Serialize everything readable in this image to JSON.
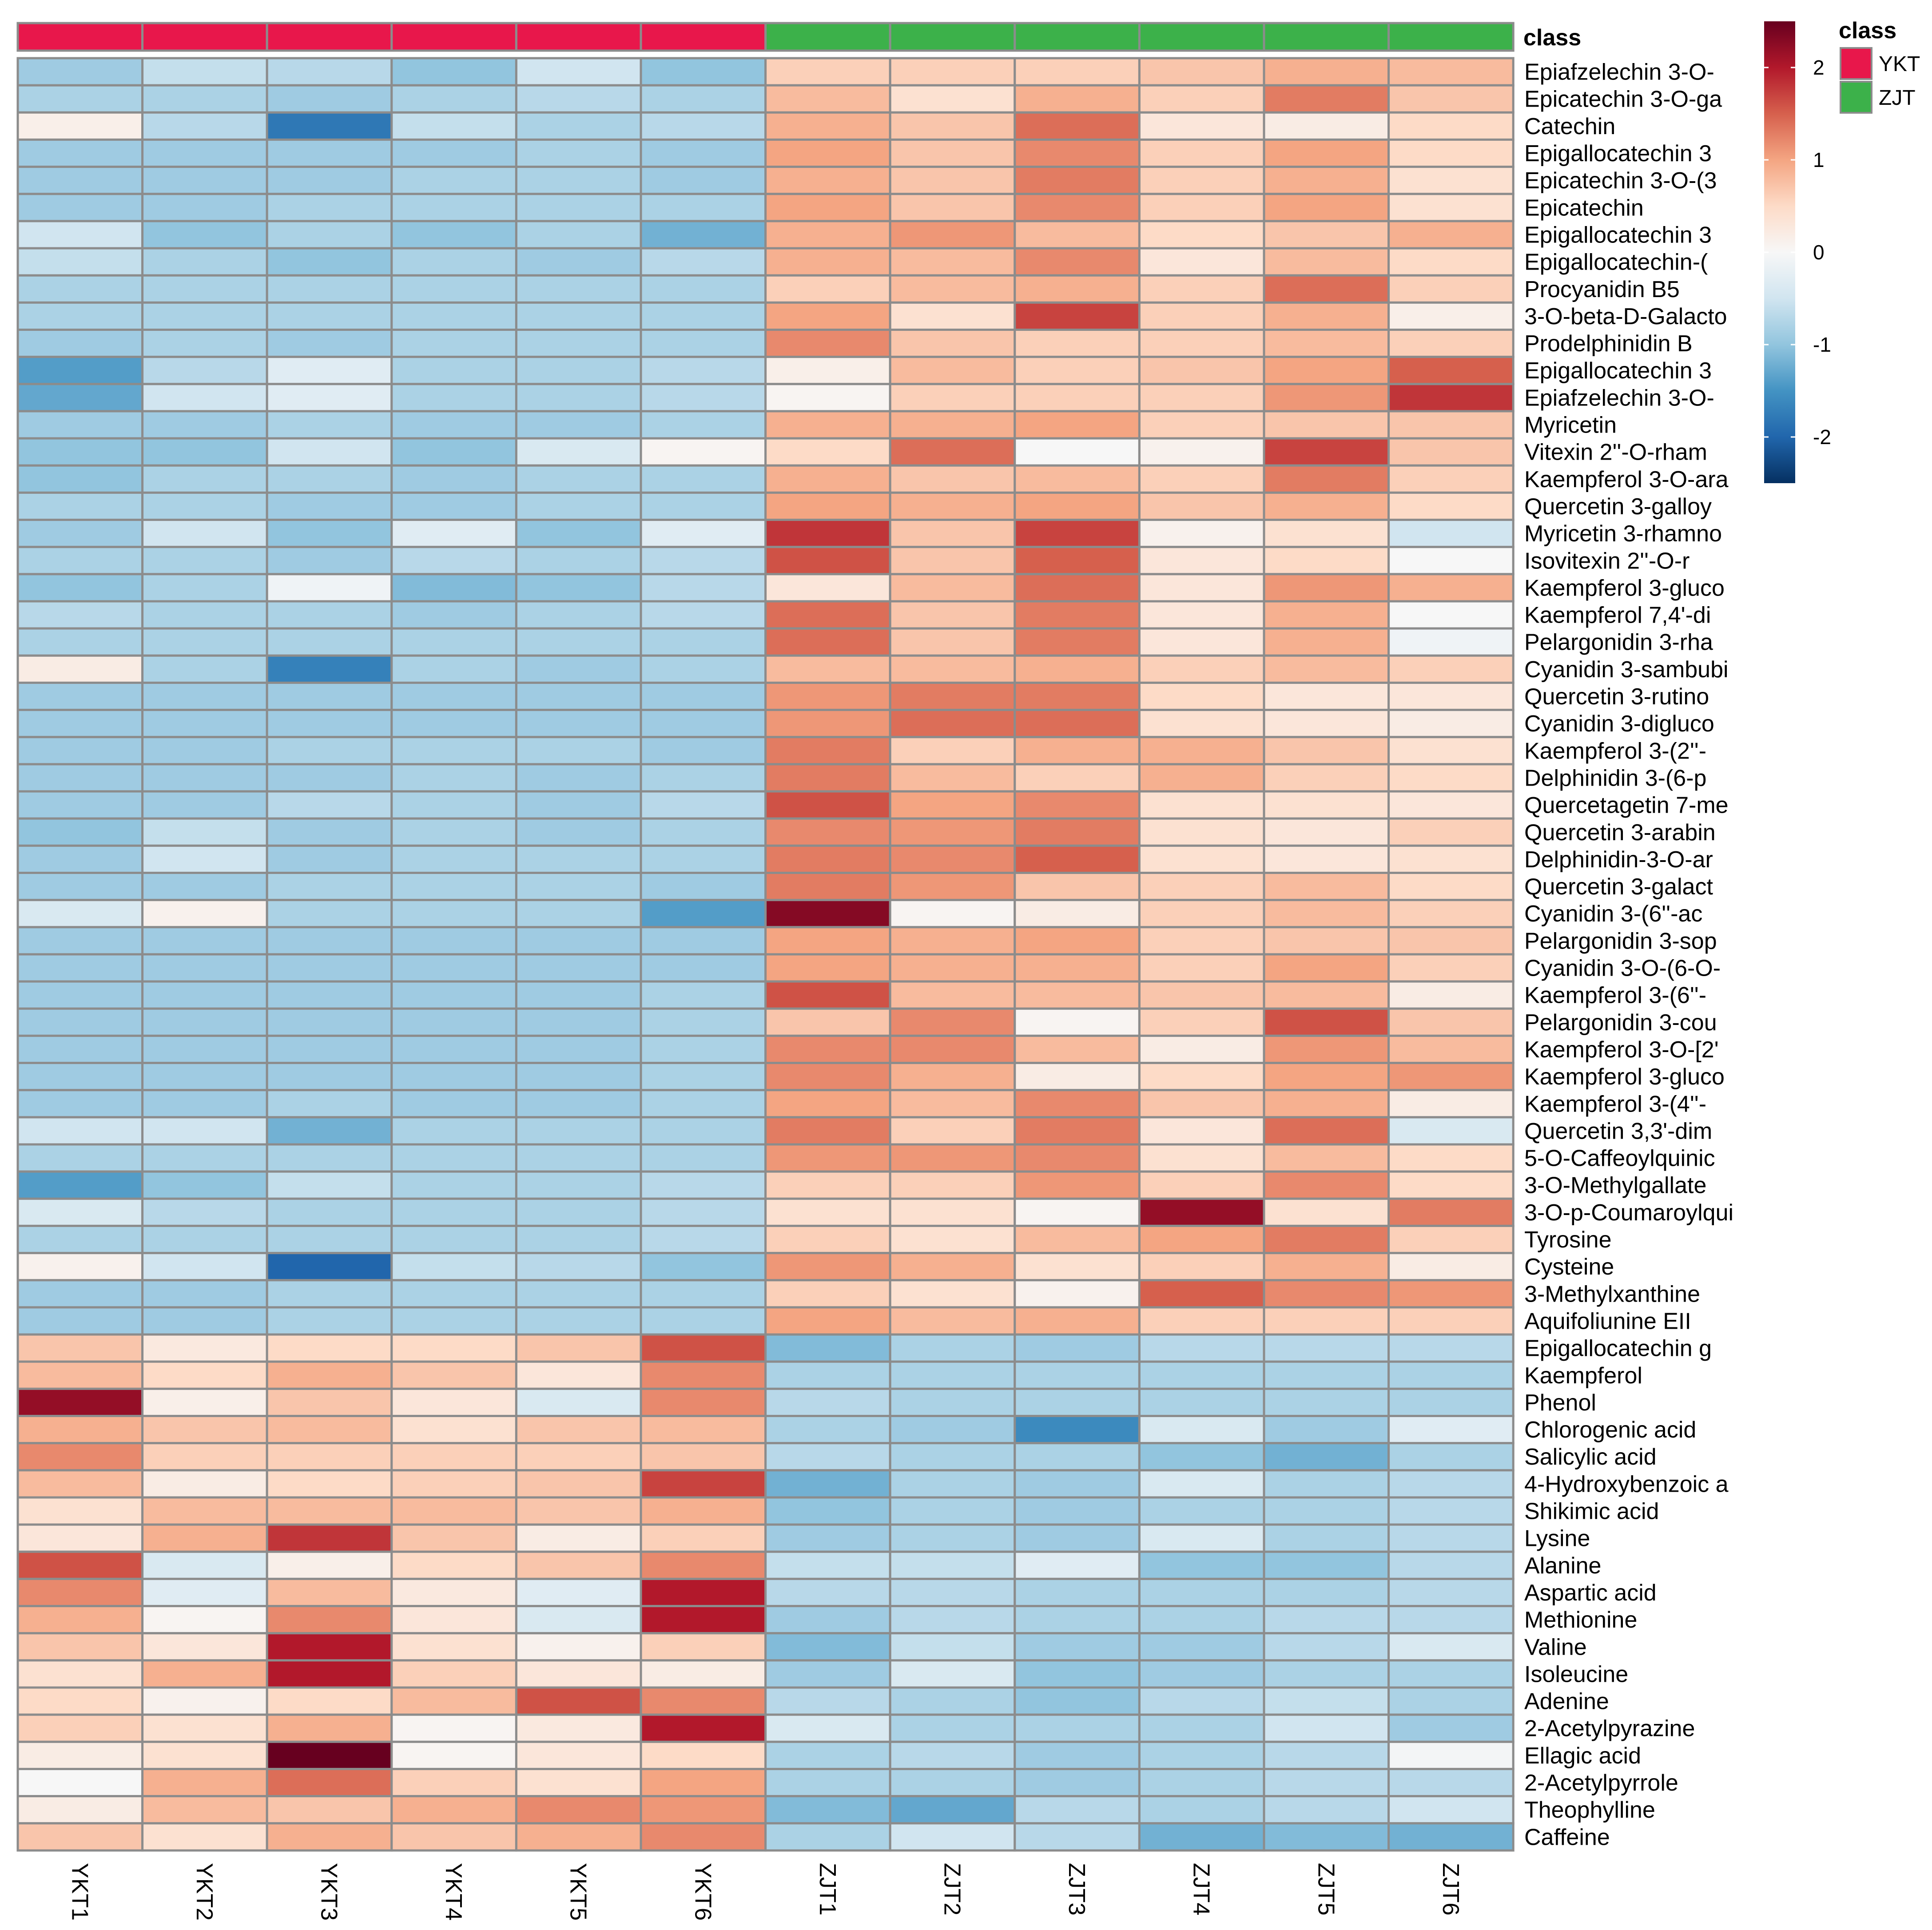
{
  "chart_data": {
    "type": "heatmap",
    "columns": [
      "YKT1",
      "YKT2",
      "YKT3",
      "YKT4",
      "YKT5",
      "YKT6",
      "ZJT1",
      "ZJT2",
      "ZJT3",
      "ZJT4",
      "ZJT5",
      "ZJT6"
    ],
    "column_class": [
      "YKT",
      "YKT",
      "YKT",
      "YKT",
      "YKT",
      "YKT",
      "ZJT",
      "ZJT",
      "ZJT",
      "ZJT",
      "ZJT",
      "ZJT"
    ],
    "annotation_title": "class",
    "class_colors": {
      "YKT": "#e8174b",
      "ZJT": "#3cb14a"
    },
    "legend": {
      "title": "class",
      "items": [
        "YKT",
        "ZJT"
      ]
    },
    "color_scale": {
      "ticks": [
        2,
        1,
        0,
        -1,
        -2
      ],
      "range": [
        -2.5,
        2.5
      ],
      "colors": [
        "#053061",
        "#2166ac",
        "#4393c3",
        "#92c5de",
        "#d1e5f0",
        "#f7f7f7",
        "#fddbc7",
        "#f4a582",
        "#d6604d",
        "#b2182b",
        "#67001f"
      ]
    },
    "rows": [
      "Epiafzelechin 3-O-",
      "Epicatechin 3-O-ga",
      "Catechin",
      "Epigallocatechin 3",
      "Epicatechin 3-O-(3",
      "Epicatechin",
      "Epigallocatechin 3",
      "Epigallocatechin-(",
      "Procyanidin B5",
      "3-O-beta-D-Galacto",
      "Prodelphinidin B",
      "Epigallocatechin 3",
      "Epiafzelechin 3-O-",
      "Myricetin",
      "Vitexin 2''-O-rham",
      "Kaempferol 3-O-ara",
      "Quercetin 3-galloy",
      "Myricetin 3-rhamno",
      "Isovitexin 2''-O-r",
      "Kaempferol 3-gluco",
      "Kaempferol 7,4'-di",
      "Pelargonidin 3-rha",
      "Cyanidin 3-sambubi",
      "Quercetin 3-rutino",
      "Cyanidin 3-digluco",
      "Kaempferol 3-(2''-",
      "Delphinidin 3-(6-p",
      "Quercetagetin 7-me",
      "Quercetin 3-arabin",
      "Delphinidin-3-O-ar",
      "Quercetin 3-galact",
      "Cyanidin 3-(6''-ac",
      "Pelargonidin 3-sop",
      "Cyanidin 3-O-(6-O-",
      "Kaempferol 3-(6''-",
      "Pelargonidin 3-cou",
      "Kaempferol 3-O-[2'",
      "Kaempferol 3-gluco",
      "Kaempferol 3-(4''-",
      "Quercetin 3,3'-dim",
      "5-O-Caffeoylquinic",
      "3-O-Methylgallate",
      "3-O-p-Coumaroylqui",
      "Tyrosine",
      "Cysteine",
      "3-Methylxanthine",
      "Aquifoliunine EII",
      "Epigallocatechin g",
      "Kaempferol",
      "Phenol",
      "Chlorogenic acid",
      "Salicylic acid",
      "4-Hydroxybenzoic a",
      "Shikimic acid",
      "Lysine",
      "Alanine",
      "Aspartic acid",
      "Methionine",
      "Valine",
      "Isoleucine",
      "Adenine",
      "2-Acetylpyrazine",
      "Ellagic acid",
      "2-Acetylpyrrole",
      "Theophylline",
      "Caffeine"
    ],
    "values": [
      [
        -0.9,
        -0.6,
        -0.7,
        -1.0,
        -0.5,
        -1.0,
        0.6,
        0.6,
        0.6,
        0.7,
        0.9,
        0.8
      ],
      [
        -0.8,
        -0.8,
        -0.9,
        -0.8,
        -0.7,
        -0.8,
        0.8,
        0.4,
        0.9,
        0.6,
        1.3,
        0.7
      ],
      [
        0.15,
        -0.7,
        -1.8,
        -0.6,
        -0.8,
        -0.7,
        0.9,
        0.7,
        1.4,
        0.3,
        0.2,
        0.5
      ],
      [
        -0.9,
        -0.9,
        -0.9,
        -0.9,
        -0.8,
        -0.9,
        1.0,
        0.7,
        1.2,
        0.6,
        1.0,
        0.5
      ],
      [
        -0.9,
        -0.9,
        -0.9,
        -0.8,
        -0.8,
        -0.9,
        0.9,
        0.7,
        1.3,
        0.6,
        0.9,
        0.4
      ],
      [
        -0.9,
        -0.9,
        -0.8,
        -0.8,
        -0.8,
        -0.8,
        1.0,
        0.7,
        1.2,
        0.6,
        1.0,
        0.4
      ],
      [
        -0.5,
        -1.0,
        -0.8,
        -1.0,
        -0.8,
        -1.2,
        0.9,
        1.1,
        0.8,
        0.5,
        0.7,
        0.9
      ],
      [
        -0.6,
        -0.8,
        -1.0,
        -0.8,
        -0.9,
        -0.7,
        0.9,
        0.8,
        1.2,
        0.3,
        0.8,
        0.5
      ],
      [
        -0.8,
        -0.8,
        -0.8,
        -0.8,
        -0.8,
        -0.8,
        0.6,
        0.8,
        0.9,
        0.6,
        1.4,
        0.6
      ],
      [
        -0.8,
        -0.8,
        -0.8,
        -0.8,
        -0.8,
        -0.8,
        1.0,
        0.4,
        1.7,
        0.6,
        0.9,
        0.15
      ],
      [
        -0.9,
        -0.8,
        -0.9,
        -0.8,
        -0.8,
        -0.8,
        1.2,
        0.7,
        0.6,
        0.6,
        0.8,
        0.6
      ],
      [
        -1.4,
        -0.7,
        -0.3,
        -0.8,
        -0.8,
        -0.7,
        0.15,
        0.8,
        0.6,
        0.7,
        1.0,
        1.5
      ],
      [
        -1.3,
        -0.5,
        -0.3,
        -0.8,
        -0.8,
        -0.7,
        0.05,
        0.6,
        0.6,
        0.6,
        1.1,
        1.8
      ],
      [
        -0.9,
        -0.9,
        -0.8,
        -0.9,
        -0.9,
        -0.8,
        0.9,
        0.9,
        1.0,
        0.6,
        0.7,
        0.7
      ],
      [
        -1.0,
        -1.0,
        -0.5,
        -1.0,
        -0.4,
        0.05,
        0.5,
        1.4,
        0.0,
        0.1,
        1.7,
        0.7
      ],
      [
        -1.0,
        -0.8,
        -0.8,
        -0.9,
        -0.8,
        -0.8,
        0.9,
        0.7,
        0.8,
        0.6,
        1.3,
        0.6
      ],
      [
        -0.8,
        -0.8,
        -0.9,
        -0.9,
        -0.8,
        -0.8,
        1.0,
        0.9,
        1.0,
        0.7,
        0.9,
        0.5
      ],
      [
        -0.9,
        -0.5,
        -1.0,
        -0.3,
        -1.0,
        -0.3,
        1.8,
        0.7,
        1.7,
        0.1,
        0.4,
        -0.5
      ],
      [
        -0.8,
        -0.8,
        -0.9,
        -0.7,
        -0.8,
        -0.7,
        1.6,
        0.7,
        1.5,
        0.3,
        0.5,
        0.0
      ],
      [
        -1.0,
        -0.8,
        -0.1,
        -1.1,
        -1.0,
        -0.7,
        0.3,
        0.8,
        1.4,
        0.3,
        1.1,
        0.9
      ],
      [
        -0.7,
        -0.8,
        -0.8,
        -0.9,
        -0.8,
        -0.7,
        1.4,
        0.7,
        1.3,
        0.3,
        0.9,
        0.0
      ],
      [
        -0.8,
        -0.8,
        -0.8,
        -0.8,
        -0.8,
        -0.8,
        1.4,
        0.7,
        1.3,
        0.3,
        0.9,
        -0.1
      ],
      [
        0.2,
        -0.8,
        -1.7,
        -0.8,
        -0.9,
        -0.8,
        0.8,
        0.8,
        0.9,
        0.6,
        0.8,
        0.6
      ],
      [
        -0.9,
        -0.9,
        -0.9,
        -0.9,
        -0.9,
        -0.9,
        1.1,
        1.3,
        1.3,
        0.5,
        0.3,
        0.3
      ],
      [
        -0.9,
        -0.9,
        -0.9,
        -0.9,
        -0.9,
        -0.9,
        1.1,
        1.4,
        1.4,
        0.4,
        0.3,
        0.2
      ],
      [
        -0.9,
        -0.9,
        -0.8,
        -0.8,
        -0.8,
        -0.9,
        1.3,
        0.6,
        0.9,
        0.9,
        0.7,
        0.4
      ],
      [
        -0.9,
        -0.9,
        -0.9,
        -0.8,
        -0.9,
        -0.8,
        1.3,
        0.8,
        0.6,
        0.9,
        0.6,
        0.5
      ],
      [
        -0.9,
        -0.9,
        -0.7,
        -0.8,
        -0.9,
        -0.7,
        1.6,
        1.0,
        1.2,
        0.4,
        0.4,
        0.3
      ],
      [
        -1.0,
        -0.6,
        -0.9,
        -0.8,
        -0.9,
        -0.8,
        1.2,
        1.1,
        1.3,
        0.4,
        0.3,
        0.6
      ],
      [
        -0.9,
        -0.5,
        -0.9,
        -0.8,
        -0.8,
        -0.8,
        1.3,
        1.2,
        1.5,
        0.4,
        0.3,
        0.4
      ],
      [
        -0.9,
        -0.9,
        -0.8,
        -0.8,
        -0.8,
        -0.9,
        1.3,
        1.1,
        0.7,
        0.6,
        0.8,
        0.5
      ],
      [
        -0.4,
        0.1,
        -0.8,
        -0.8,
        -0.8,
        -1.4,
        2.3,
        0.05,
        0.2,
        0.6,
        0.8,
        0.6
      ],
      [
        -0.9,
        -0.9,
        -0.9,
        -0.9,
        -0.9,
        -0.9,
        1.0,
        0.9,
        1.0,
        0.6,
        0.7,
        0.7
      ],
      [
        -0.9,
        -0.9,
        -0.9,
        -0.9,
        -0.9,
        -0.9,
        1.0,
        0.9,
        0.9,
        0.6,
        1.0,
        0.6
      ],
      [
        -0.9,
        -0.9,
        -0.9,
        -0.9,
        -0.9,
        -0.8,
        1.6,
        0.8,
        0.8,
        0.7,
        0.8,
        0.2
      ],
      [
        -0.9,
        -0.9,
        -0.9,
        -0.9,
        -0.9,
        -0.8,
        0.7,
        1.2,
        0.05,
        0.6,
        1.6,
        0.7
      ],
      [
        -0.9,
        -0.9,
        -0.9,
        -0.9,
        -0.9,
        -0.8,
        1.2,
        1.2,
        0.8,
        0.2,
        1.1,
        0.8
      ],
      [
        -0.9,
        -0.9,
        -0.9,
        -0.9,
        -0.9,
        -0.8,
        1.2,
        0.9,
        0.2,
        0.5,
        1.0,
        1.1
      ],
      [
        -0.9,
        -0.9,
        -0.8,
        -0.9,
        -0.9,
        -0.8,
        1.0,
        0.8,
        1.2,
        0.7,
        0.9,
        0.2
      ],
      [
        -0.5,
        -0.5,
        -1.2,
        -0.8,
        -0.8,
        -0.8,
        1.3,
        0.6,
        1.3,
        0.3,
        1.4,
        -0.4
      ],
      [
        -0.8,
        -0.8,
        -0.8,
        -0.8,
        -0.8,
        -0.8,
        1.1,
        1.1,
        1.2,
        0.4,
        0.8,
        0.5
      ],
      [
        -1.4,
        -1.0,
        -0.6,
        -0.8,
        -0.8,
        -0.7,
        0.6,
        0.6,
        1.1,
        0.6,
        1.2,
        0.5
      ],
      [
        -0.4,
        -0.7,
        -0.8,
        -0.8,
        -0.8,
        -0.7,
        0.4,
        0.4,
        0.05,
        2.2,
        0.4,
        1.3
      ],
      [
        -0.8,
        -0.8,
        -0.8,
        -0.8,
        -0.8,
        -0.7,
        0.6,
        0.4,
        0.8,
        1.0,
        1.3,
        0.6
      ],
      [
        0.1,
        -0.5,
        -2.0,
        -0.6,
        -0.7,
        -1.0,
        1.1,
        0.9,
        0.4,
        0.6,
        0.9,
        0.2
      ],
      [
        -0.9,
        -0.9,
        -0.8,
        -0.8,
        -0.8,
        -0.8,
        0.6,
        0.4,
        0.1,
        1.5,
        1.2,
        1.1
      ],
      [
        -0.9,
        -0.9,
        -0.8,
        -0.8,
        -0.8,
        -0.8,
        1.0,
        0.8,
        0.9,
        0.6,
        0.6,
        0.6
      ],
      [
        0.7,
        0.25,
        0.5,
        0.5,
        0.7,
        1.6,
        -1.1,
        -0.8,
        -0.9,
        -0.7,
        -0.7,
        -0.7
      ],
      [
        0.8,
        0.5,
        0.9,
        0.7,
        0.3,
        1.2,
        -0.8,
        -0.8,
        -0.8,
        -0.8,
        -0.8,
        -0.8
      ],
      [
        2.2,
        0.15,
        0.7,
        0.3,
        -0.4,
        1.2,
        -0.7,
        -0.8,
        -0.8,
        -0.8,
        -0.8,
        -0.8
      ],
      [
        0.9,
        0.7,
        0.8,
        0.4,
        0.7,
        0.8,
        -0.8,
        -0.9,
        -1.6,
        -0.4,
        -0.9,
        -0.3
      ],
      [
        1.2,
        0.6,
        0.6,
        0.6,
        0.6,
        0.7,
        -0.7,
        -0.8,
        -0.8,
        -1.0,
        -1.2,
        -0.8
      ],
      [
        0.8,
        0.2,
        0.5,
        0.6,
        0.7,
        1.7,
        -1.2,
        -0.8,
        -0.9,
        -0.4,
        -0.8,
        -0.7
      ],
      [
        0.4,
        0.8,
        0.8,
        0.8,
        0.7,
        0.9,
        -1.0,
        -0.8,
        -0.9,
        -0.8,
        -0.8,
        -0.7
      ],
      [
        0.3,
        0.9,
        1.8,
        0.7,
        0.2,
        0.6,
        -0.9,
        -0.8,
        -0.9,
        -0.4,
        -0.8,
        -0.7
      ],
      [
        1.6,
        -0.4,
        0.15,
        0.5,
        0.7,
        1.2,
        -0.6,
        -0.6,
        -0.3,
        -1.0,
        -1.0,
        -0.7
      ],
      [
        1.2,
        -0.3,
        0.8,
        0.25,
        -0.3,
        2.0,
        -0.7,
        -0.7,
        -0.8,
        -0.8,
        -0.8,
        -0.7
      ],
      [
        0.9,
        0.05,
        1.2,
        0.3,
        -0.4,
        2.0,
        -0.9,
        -0.7,
        -0.8,
        -0.8,
        -0.7,
        -0.7
      ],
      [
        0.7,
        0.3,
        2.0,
        0.4,
        0.1,
        0.6,
        -1.1,
        -0.6,
        -0.9,
        -0.9,
        -0.7,
        -0.4
      ],
      [
        0.4,
        0.9,
        2.0,
        0.6,
        0.3,
        0.2,
        -0.9,
        -0.4,
        -1.0,
        -0.9,
        -0.8,
        -0.8
      ],
      [
        0.5,
        0.1,
        0.5,
        0.8,
        1.6,
        1.2,
        -0.7,
        -0.8,
        -1.0,
        -0.7,
        -0.6,
        -0.8
      ],
      [
        0.6,
        0.4,
        0.9,
        0.05,
        0.25,
        2.0,
        -0.4,
        -0.8,
        -0.8,
        -0.8,
        -0.5,
        -0.9
      ],
      [
        0.2,
        0.4,
        2.5,
        0.05,
        0.3,
        0.5,
        -0.8,
        -0.7,
        -0.9,
        -0.8,
        -0.7,
        -0.05
      ],
      [
        0.0,
        0.9,
        1.4,
        0.6,
        0.4,
        1.0,
        -0.8,
        -0.8,
        -0.9,
        -0.8,
        -0.7,
        -0.7
      ],
      [
        0.2,
        0.8,
        0.7,
        0.9,
        1.2,
        1.1,
        -1.1,
        -1.3,
        -0.7,
        -0.8,
        -0.7,
        -0.5
      ],
      [
        0.7,
        0.4,
        0.9,
        0.7,
        0.9,
        1.2,
        -0.8,
        -0.5,
        -0.7,
        -1.2,
        -1.1,
        -1.2
      ]
    ]
  }
}
